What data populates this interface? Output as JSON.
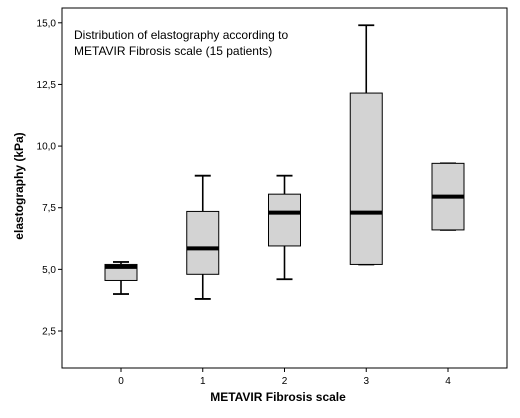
{
  "chart_data": {
    "type": "box",
    "title_lines": [
      "Distribution of elastography according to",
      "METAVIR Fibrosis scale (15 patients)"
    ],
    "xlabel": "METAVIR Fibrosis scale",
    "ylabel": "elastography (kPa)",
    "categories": [
      "0",
      "1",
      "2",
      "3",
      "4"
    ],
    "yticks": [
      2.5,
      5.0,
      7.5,
      10.0,
      12.5,
      15.0
    ],
    "ytick_labels": [
      "2,5",
      "5,0",
      "7,5",
      "10,0",
      "12,5",
      "15,0"
    ],
    "ylim": [
      1.0,
      15.6
    ],
    "grid": false,
    "box_fill": "#d3d3d3",
    "boxes": [
      {
        "category": "0",
        "min": 4.0,
        "q1": 4.55,
        "median": 5.1,
        "q3": 5.2,
        "max": 5.3
      },
      {
        "category": "1",
        "min": 3.8,
        "q1": 4.8,
        "median": 5.85,
        "q3": 7.35,
        "max": 8.8
      },
      {
        "category": "2",
        "min": 4.6,
        "q1": 5.95,
        "median": 7.3,
        "q3": 8.05,
        "max": 8.8
      },
      {
        "category": "3",
        "min": 5.2,
        "q1": 5.2,
        "median": 7.3,
        "q3": 12.15,
        "max": 14.9
      },
      {
        "category": "4",
        "min": 6.6,
        "q1": 6.6,
        "median": 7.95,
        "q3": 9.3,
        "max": 9.3
      }
    ]
  }
}
